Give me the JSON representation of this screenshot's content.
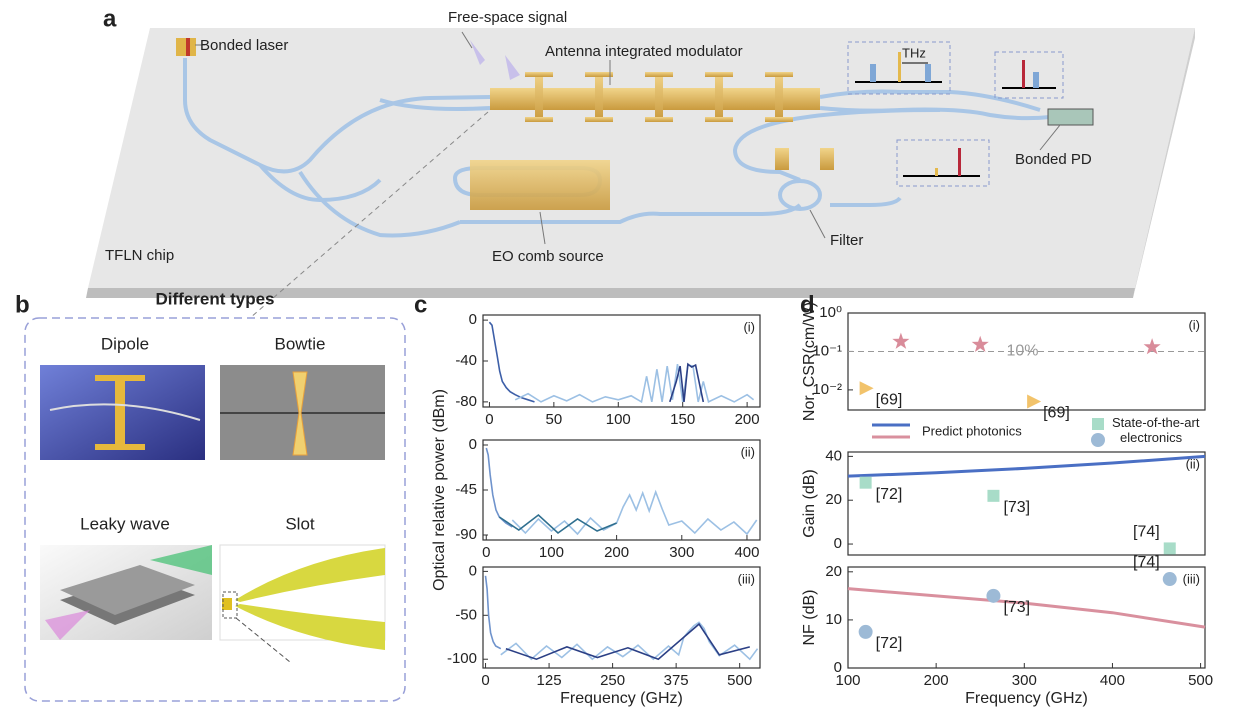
{
  "panel_labels": [
    "a",
    "b",
    "c",
    "d"
  ],
  "diagram": {
    "bonded_laser": "Bonded laser",
    "free_space": "Free-space signal",
    "modulator": "Antenna integrated modulator",
    "thz": "THz",
    "bonded_pd": "Bonded PD",
    "filter": "Filter",
    "eo_comb": "EO comb source",
    "chip": "TFLN chip"
  },
  "antenna_types": {
    "title": "Different types",
    "items": [
      "Dipole",
      "Bowtie",
      "Leaky wave",
      "Slot"
    ]
  },
  "chart_data": [
    {
      "type": "line",
      "annotation": "(i)",
      "xlim": [
        -5,
        210
      ],
      "xticks": [
        0,
        50,
        100,
        150,
        200
      ],
      "ylim": [
        -85,
        5
      ],
      "yticks": [
        -80,
        -40,
        0
      ],
      "series": [
        {
          "color": "#3d5fa8",
          "x": [
            0,
            2,
            4,
            6,
            8,
            10,
            13,
            16,
            20,
            25,
            30,
            35
          ],
          "values": [
            -2,
            -5,
            -20,
            -35,
            -50,
            -60,
            -66,
            -70,
            -73,
            -76,
            -78,
            -80
          ]
        },
        {
          "color": "#9cc0e4",
          "x": [
            20,
            30,
            40,
            50,
            60,
            70,
            80,
            90,
            100,
            110,
            118,
            122,
            126,
            130,
            134,
            138,
            142,
            146,
            150,
            154,
            158,
            162,
            166,
            170,
            180,
            190,
            200,
            205
          ],
          "values": [
            -78,
            -72,
            -80,
            -74,
            -79,
            -73,
            -80,
            -75,
            -78,
            -74,
            -80,
            -55,
            -80,
            -48,
            -80,
            -45,
            -78,
            -43,
            -80,
            -44,
            -45,
            -80,
            -60,
            -80,
            -74,
            -80,
            -73,
            -78
          ]
        },
        {
          "color": "#2b3f85",
          "x": [
            140,
            145,
            148,
            151,
            154,
            157,
            160,
            163,
            166
          ],
          "values": [
            -80,
            -60,
            -45,
            -80,
            -43,
            -46,
            -44,
            -62,
            -80
          ]
        }
      ]
    },
    {
      "type": "line",
      "annotation": "(ii)",
      "ylabel": "Optical relative  power (dBm)",
      "xlim": [
        -5,
        420
      ],
      "xticks": [
        0,
        100,
        200,
        300,
        400
      ],
      "ylim": [
        -95,
        5
      ],
      "yticks": [
        -90,
        -45,
        0
      ],
      "series": [
        {
          "color": "#6f93cc",
          "x": [
            0,
            3,
            6,
            10,
            15,
            20,
            30,
            40
          ],
          "values": [
            -3,
            -10,
            -30,
            -50,
            -65,
            -72,
            -78,
            -82
          ]
        },
        {
          "color": "#9cc0e4",
          "x": [
            40,
            60,
            80,
            100,
            120,
            140,
            160,
            180,
            200,
            210,
            220,
            230,
            240,
            250,
            260,
            270,
            280,
            300,
            320,
            340,
            360,
            380,
            400,
            415
          ],
          "values": [
            -75,
            -88,
            -74,
            -86,
            -76,
            -89,
            -73,
            -85,
            -78,
            -62,
            -50,
            -65,
            -48,
            -66,
            -47,
            -64,
            -80,
            -76,
            -88,
            -74,
            -85,
            -77,
            -89,
            -75
          ]
        },
        {
          "color": "#2f6f8f",
          "x": [
            20,
            50,
            80,
            110,
            140,
            170,
            200
          ],
          "values": [
            -72,
            -85,
            -70,
            -88,
            -74,
            -86,
            -78
          ]
        }
      ]
    },
    {
      "type": "line",
      "annotation": "(iii)",
      "xlabel": "Frequency (GHz)",
      "xlim": [
        -5,
        540
      ],
      "xticks": [
        0,
        125,
        250,
        375,
        500
      ],
      "ylim": [
        -110,
        5
      ],
      "yticks": [
        -100,
        -50,
        0
      ],
      "series": [
        {
          "color": "#6f93cc",
          "x": [
            0,
            3,
            6,
            10,
            15,
            20,
            30
          ],
          "values": [
            -5,
            -20,
            -50,
            -70,
            -80,
            -85,
            -88
          ]
        },
        {
          "color": "#9cc0e4",
          "x": [
            30,
            60,
            90,
            120,
            150,
            180,
            210,
            240,
            270,
            300,
            330,
            360,
            380,
            390,
            400,
            410,
            420,
            430,
            440,
            460,
            490,
            520,
            535
          ],
          "values": [
            -95,
            -82,
            -100,
            -85,
            -98,
            -83,
            -100,
            -86,
            -97,
            -84,
            -100,
            -85,
            -95,
            -75,
            -68,
            -62,
            -58,
            -65,
            -80,
            -96,
            -84,
            -100,
            -88
          ]
        },
        {
          "color": "#2b3f85",
          "x": [
            40,
            100,
            160,
            220,
            280,
            340,
            400,
            420,
            460,
            520
          ],
          "values": [
            -88,
            -100,
            -86,
            -98,
            -87,
            -100,
            -70,
            -60,
            -95,
            -86
          ]
        }
      ]
    },
    {
      "type": "scatter",
      "annotation": "(i)",
      "ylabel": "Nor. CSR(cm/W)",
      "log_y": true,
      "xlim": [
        100,
        505
      ],
      "ylim": [
        0.003,
        1
      ],
      "yticks": [
        {
          "value": 0.01,
          "label": "10⁻²"
        },
        {
          "value": 0.1,
          "label": "10⁻¹"
        },
        {
          "value": 1,
          "label": "10⁰"
        }
      ],
      "hline": {
        "value": 0.1,
        "label": "10%"
      },
      "series": [
        {
          "color": "#d98c9a",
          "marker": "star",
          "x": [
            160,
            250,
            445
          ],
          "values": [
            0.18,
            0.15,
            0.13
          ]
        },
        {
          "color": "#f2c36b",
          "marker": "triangle",
          "x": [
            120,
            310
          ],
          "values": [
            0.011,
            0.005
          ],
          "point_labels": [
            "[69]",
            "[69]"
          ]
        }
      ]
    },
    {
      "type": "line",
      "annotation": "(ii)",
      "ylabel": "Gain (dB)",
      "xlim": [
        100,
        505
      ],
      "ylim": [
        -5,
        42
      ],
      "yticks": [
        0,
        20,
        40
      ],
      "series": [
        {
          "name": "Predict photonics",
          "color": "#4a6fc4",
          "x": [
            100,
            200,
            300,
            400,
            505
          ],
          "values": [
            31,
            32.5,
            34.5,
            37,
            40
          ]
        },
        {
          "name": "State-of-the-art electronics",
          "color": "#a8dcc8",
          "marker": "square",
          "x": [
            120,
            265,
            465
          ],
          "values": [
            28,
            22,
            -2
          ],
          "point_labels": [
            "[72]",
            "[73]",
            "[74]"
          ]
        }
      ]
    },
    {
      "type": "line",
      "annotation": "(iii)",
      "ylabel": "NF (dB)",
      "xlabel": "Frequency (GHz)",
      "xlim": [
        100,
        505
      ],
      "xticks": [
        100,
        200,
        300,
        400,
        500
      ],
      "ylim": [
        0,
        21
      ],
      "yticks": [
        0,
        10,
        20
      ],
      "series": [
        {
          "color": "#d9909e",
          "x": [
            100,
            200,
            300,
            400,
            505
          ],
          "values": [
            16.5,
            15,
            13.5,
            11.5,
            8.5
          ]
        },
        {
          "color": "#9dbad6",
          "marker": "circle",
          "x": [
            120,
            265,
            465
          ],
          "values": [
            7.5,
            15,
            18.5
          ],
          "point_labels": [
            "[72]",
            "[73]",
            "[74]"
          ]
        }
      ]
    }
  ]
}
